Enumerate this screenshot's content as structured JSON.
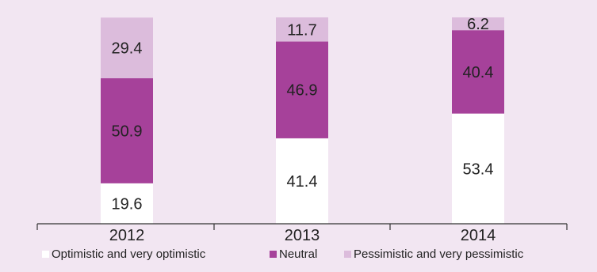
{
  "chart_data": {
    "type": "bar",
    "stacked": true,
    "categories": [
      "2012",
      "2013",
      "2014"
    ],
    "series": [
      {
        "name": "Optimistic and very optimistic",
        "values": [
          19.6,
          41.4,
          53.4
        ],
        "color": "#ffffff"
      },
      {
        "name": "Neutral",
        "values": [
          50.9,
          46.9,
          40.4
        ],
        "color": "#a6419a"
      },
      {
        "name": "Pessimistic and very pessimistic",
        "values": [
          29.4,
          11.7,
          6.2
        ],
        "color": "#dcbcdc"
      }
    ],
    "ylim": [
      0,
      100
    ],
    "grid": false,
    "legend_position": "bottom",
    "background": "#f2e6f2"
  }
}
